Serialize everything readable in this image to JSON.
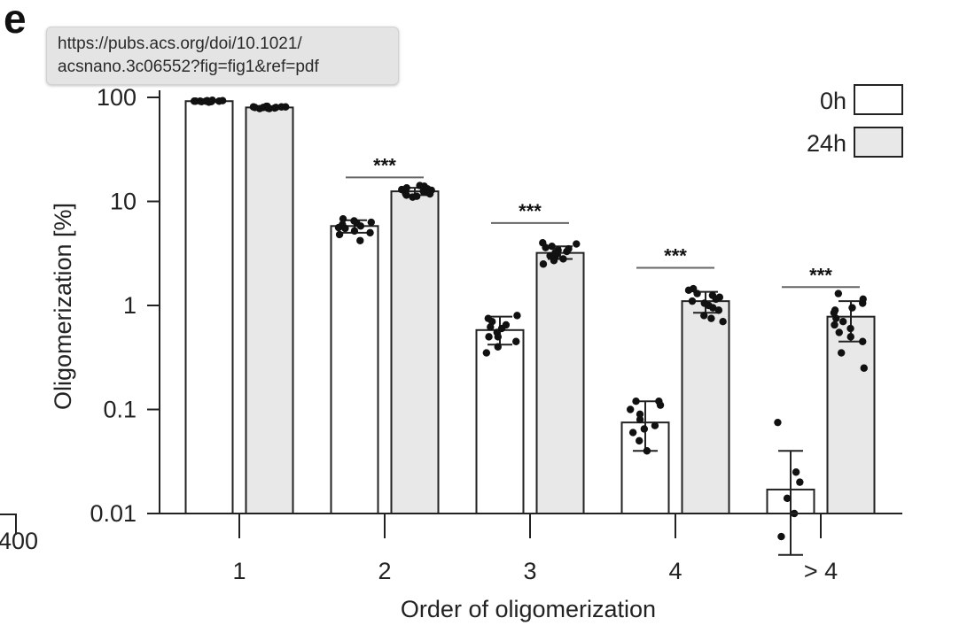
{
  "panel_label": "e",
  "tooltip": {
    "line1": "https://pubs.acs.org/doi/10.1021/",
    "line2": "acsnano.3c06552?fig=fig1&ref=pdf"
  },
  "stray_left_label": "400",
  "colors": {
    "bar_0h": "#ffffff",
    "bar_24h": "#e8e8e8",
    "stroke": "#222222",
    "dots": "#111111",
    "significance_line": "#666666"
  },
  "chart_data": {
    "type": "bar",
    "title": "",
    "xlabel": "Order of oligomerization",
    "ylabel": "Oligomerization [%]",
    "yscale": "log",
    "ylim": [
      0.01,
      100
    ],
    "yticks": [
      0.01,
      0.1,
      1,
      10,
      100
    ],
    "ytick_labels": [
      "0.01",
      "0.1",
      "1",
      "10",
      "100"
    ],
    "categories": [
      "1",
      "2",
      "3",
      "4",
      "> 4"
    ],
    "legend_position": "top-right",
    "series": [
      {
        "name": "0h",
        "values": [
          92,
          5.8,
          0.58,
          0.075,
          0.017
        ],
        "error": [
          [
            90,
            94
          ],
          [
            5.0,
            6.6
          ],
          [
            0.42,
            0.78
          ],
          [
            0.04,
            0.12
          ],
          [
            0.004,
            0.04
          ]
        ],
        "points": [
          [
            90,
            91,
            92,
            92,
            93,
            91,
            92,
            93,
            94,
            92,
            91,
            92
          ],
          [
            4.2,
            4.8,
            5.2,
            5.5,
            5.8,
            6.0,
            6.2,
            6.5,
            6.8,
            5.6,
            5.0,
            6.3
          ],
          [
            0.35,
            0.4,
            0.45,
            0.5,
            0.55,
            0.6,
            0.65,
            0.7,
            0.75,
            0.8,
            0.5,
            0.62
          ],
          [
            0.04,
            0.05,
            0.06,
            0.07,
            0.08,
            0.09,
            0.1,
            0.11,
            0.12,
            0.12,
            0.065
          ],
          [
            0.006,
            0.01,
            0.014,
            0.02,
            0.025,
            0.075
          ]
        ]
      },
      {
        "name": "24h",
        "values": [
          80,
          12.5,
          3.2,
          1.1,
          0.78
        ],
        "error": [
          [
            78,
            82
          ],
          [
            11.5,
            13.5
          ],
          [
            2.8,
            3.7
          ],
          [
            0.85,
            1.35
          ],
          [
            0.45,
            1.1
          ]
        ],
        "points": [
          [
            78,
            79,
            80,
            81,
            82,
            80,
            79,
            81,
            80,
            82,
            78,
            80,
            81,
            79
          ],
          [
            11,
            11.5,
            12,
            12.5,
            13,
            13.5,
            14,
            12.2,
            12.8,
            11.8,
            13.2,
            12.6,
            14.2,
            11.2
          ],
          [
            2.5,
            2.7,
            2.9,
            3.0,
            3.1,
            3.3,
            3.5,
            3.7,
            3.9,
            4.0,
            3.2,
            2.8,
            3.4,
            3.6
          ],
          [
            0.7,
            0.8,
            0.9,
            1.0,
            1.05,
            1.1,
            1.15,
            1.2,
            1.3,
            1.4,
            1.45,
            0.95,
            1.25,
            0.75
          ],
          [
            0.25,
            0.35,
            0.45,
            0.55,
            0.65,
            0.75,
            0.85,
            0.95,
            1.05,
            1.15,
            1.3,
            0.5,
            0.9,
            0.7,
            0.6
          ]
        ]
      }
    ],
    "annotations": [
      {
        "category": "2",
        "text": "***",
        "y": 17
      },
      {
        "category": "3",
        "text": "***",
        "y": 6.2
      },
      {
        "category": "4",
        "text": "***",
        "y": 2.3
      },
      {
        "category": "> 4",
        "text": "***",
        "y": 1.5
      }
    ]
  }
}
